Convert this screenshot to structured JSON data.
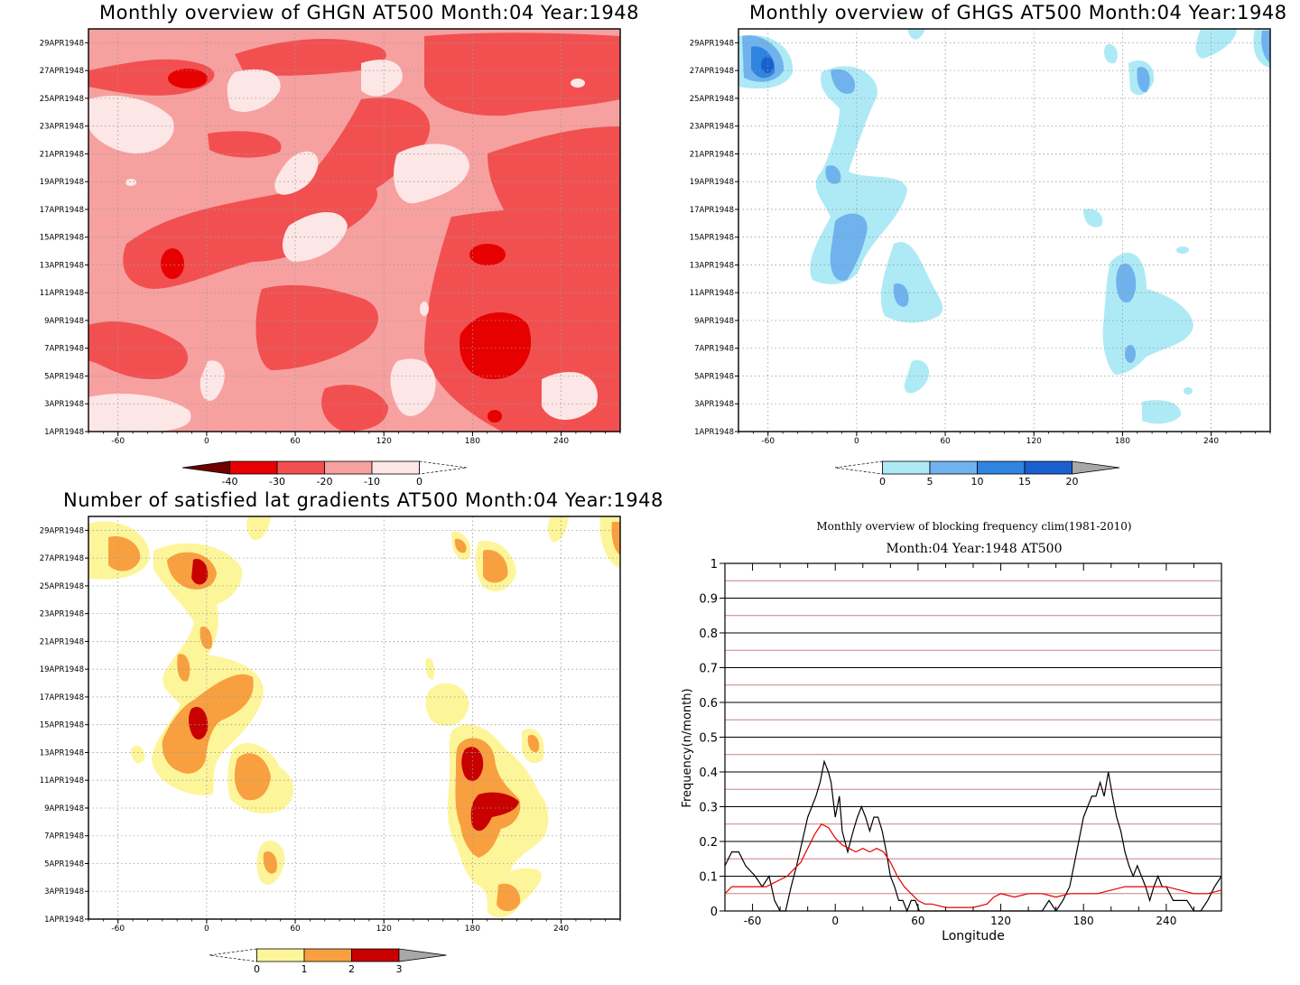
{
  "panels": {
    "ghgn": {
      "title": "Monthly overview of GHGN AT500 Month:04 Year:1948",
      "colorbar": {
        "ticks": [
          "-40",
          "-30",
          "-20",
          "-10",
          "0"
        ],
        "colors": [
          "#6e0000",
          "#e60000",
          "#f25050",
          "#f7a0a0",
          "#fde6e6"
        ]
      },
      "fill": "#f7a0a0"
    },
    "ghgs": {
      "title": "Monthly overview of GHGS AT500 Month:04 Year:1948",
      "colorbar": {
        "ticks": [
          "0",
          "5",
          "10",
          "15",
          "20"
        ],
        "colors": [
          "#aeeaf5",
          "#6fb2ee",
          "#2f84e0",
          "#1a5fcf",
          "#a8a8a8"
        ]
      }
    },
    "grad": {
      "title": "Number of satisfied lat gradients AT500 Month:04 Year:1948",
      "colorbar": {
        "ticks": [
          "0",
          "1",
          "2",
          "3"
        ],
        "colors": [
          "#fdf59a",
          "#f8a040",
          "#c80000",
          "#a8a8a8"
        ]
      }
    },
    "freq": {
      "title": "Monthly overview of blocking frequency clim(1981-2010)",
      "subtitle": "Month:04 Year:1948  AT500"
    }
  },
  "axes": {
    "lon_ticks": [
      "-60",
      "0",
      "60",
      "120",
      "180",
      "240"
    ],
    "date_ticks": [
      "1APR1948",
      "3APR1948",
      "5APR1948",
      "7APR1948",
      "9APR1948",
      "11APR1948",
      "13APR1948",
      "15APR1948",
      "17APR1948",
      "19APR1948",
      "21APR1948",
      "23APR1948",
      "25APR1948",
      "27APR1948",
      "29APR1948"
    ]
  },
  "chart_data": [
    {
      "type": "heatmap",
      "title": "Monthly overview of GHGN AT500 Month:04 Year:1948",
      "xlabel": "",
      "ylabel": "",
      "xlim": [
        -80,
        280
      ],
      "x_ticks": [
        -60,
        0,
        60,
        120,
        180,
        240
      ],
      "y_ticks": [
        "1APR1948",
        "3APR1948",
        "5APR1948",
        "7APR1948",
        "9APR1948",
        "11APR1948",
        "13APR1948",
        "15APR1948",
        "17APR1948",
        "19APR1948",
        "21APR1948",
        "23APR1948",
        "25APR1948",
        "27APR1948",
        "29APR1948"
      ],
      "colorbar_levels": [
        -40,
        -30,
        -20,
        -10,
        0
      ],
      "colormap": "reds",
      "blobs": [
        {
          "x": [
            -80,
            280
          ],
          "y": [
            1,
            30
          ],
          "level": "-20 to -10"
        },
        {
          "x": [
            -38,
            -12
          ],
          "y": [
            27,
            28.6
          ],
          "level": "-30 to -20"
        },
        {
          "x": [
            -40,
            -20
          ],
          "y": [
            12.2,
            14.6
          ],
          "level": "-30 to -20"
        },
        {
          "x": [
            170,
            215
          ],
          "y": [
            12.4,
            15
          ],
          "level": "-30 to -20"
        },
        {
          "x": [
            165,
            220
          ],
          "y": [
            4.4,
            10.4
          ],
          "level": "-30 to -20"
        },
        {
          "x": [
            -75,
            -40
          ],
          "y": [
            21.8,
            26
          ],
          "level": "-10 to 0"
        },
        {
          "x": [
            5,
            95
          ],
          "y": [
            23.6,
            29
          ],
          "level": "-10 to 0"
        }
      ]
    },
    {
      "type": "heatmap",
      "title": "Monthly overview of GHGS AT500 Month:04 Year:1948",
      "xlabel": "",
      "ylabel": "",
      "xlim": [
        -80,
        280
      ],
      "x_ticks": [
        -60,
        0,
        60,
        120,
        180,
        240
      ],
      "y_ticks": [
        "1APR1948",
        "3APR1948",
        "5APR1948",
        "7APR1948",
        "9APR1948",
        "11APR1948",
        "13APR1948",
        "15APR1948",
        "17APR1948",
        "19APR1948",
        "21APR1948",
        "23APR1948",
        "25APR1948",
        "27APR1948",
        "29APR1948"
      ],
      "colorbar_levels": [
        0,
        5,
        10,
        15,
        20
      ],
      "colormap": "blues",
      "blobs": [
        {
          "x": [
            -80,
            -42
          ],
          "y": [
            25.8,
            30
          ],
          "level": "10 to 20"
        },
        {
          "x": [
            -28,
            10
          ],
          "y": [
            12.2,
            27.5
          ],
          "level": "0 to 10"
        },
        {
          "x": [
            20,
            60
          ],
          "y": [
            8.6,
            16.6
          ],
          "level": "0 to 10"
        },
        {
          "x": [
            168,
            225
          ],
          "y": [
            4.6,
            13.6
          ],
          "level": "5 to 15"
        },
        {
          "x": [
            180,
            210
          ],
          "y": [
            1.4,
            3.6
          ],
          "level": "0 to 5"
        },
        {
          "x": [
            180,
            205
          ],
          "y": [
            25.6,
            28.6
          ],
          "level": "0 to 10"
        }
      ]
    },
    {
      "type": "heatmap",
      "title": "Number of satisfied lat gradients AT500 Month:04 Year:1948",
      "xlabel": "",
      "ylabel": "",
      "xlim": [
        -80,
        280
      ],
      "x_ticks": [
        -60,
        0,
        60,
        120,
        180,
        240
      ],
      "y_ticks": [
        "1APR1948",
        "3APR1948",
        "5APR1948",
        "7APR1948",
        "9APR1948",
        "11APR1948",
        "13APR1948",
        "15APR1948",
        "17APR1948",
        "19APR1948",
        "21APR1948",
        "23APR1948",
        "25APR1948",
        "27APR1948",
        "29APR1948"
      ],
      "colorbar_levels": [
        0,
        1,
        2,
        3
      ],
      "colormap": "yellow-orange-red",
      "blobs": [
        {
          "x": [
            -80,
            -42
          ],
          "y": [
            27,
            30
          ],
          "level": "0 to 2"
        },
        {
          "x": [
            -30,
            20
          ],
          "y": [
            25.4,
            28.8
          ],
          "level": "0 to 3"
        },
        {
          "x": [
            -30,
            30
          ],
          "y": [
            12,
            19
          ],
          "level": "0 to 3"
        },
        {
          "x": [
            15,
            60
          ],
          "y": [
            9,
            13.2
          ],
          "level": "0 to 2"
        },
        {
          "x": [
            165,
            230
          ],
          "y": [
            5.8,
            13.8
          ],
          "level": "0 to 3"
        },
        {
          "x": [
            190,
            230
          ],
          "y": [
            0.8,
            3.6
          ],
          "level": "0 to 2"
        },
        {
          "x": [
            180,
            205
          ],
          "y": [
            25.6,
            28.6
          ],
          "level": "0 to 2"
        }
      ]
    },
    {
      "type": "line",
      "title": "Monthly overview of blocking frequency clim(1981-2010)",
      "subtitle": "Month:04 Year:1948  AT500",
      "xlabel": "Longitude",
      "ylabel": "Frequency(n/month)",
      "xlim": [
        -80,
        280
      ],
      "ylim": [
        0,
        1
      ],
      "x_ticks": [
        -60,
        0,
        60,
        120,
        180,
        240
      ],
      "y_ticks": [
        0,
        0.1,
        0.2,
        0.3,
        0.4,
        0.5,
        0.6,
        0.7,
        0.8,
        0.9,
        1
      ],
      "grid": true,
      "series": [
        {
          "color": "#000000",
          "x": [
            -80,
            -75,
            -70,
            -65,
            -58,
            -53,
            -48,
            -44,
            -40,
            -36,
            -32,
            -28,
            -24,
            -20,
            -17,
            -14,
            -11,
            -8,
            -5,
            -3,
            0,
            3,
            5,
            7,
            9,
            11,
            13,
            16,
            19,
            22,
            25,
            28,
            31,
            34,
            37,
            40,
            43,
            46,
            49,
            52,
            55,
            58,
            61,
            65,
            70,
            80,
            100,
            120,
            140,
            150,
            155,
            160,
            165,
            170,
            175,
            180,
            183,
            186,
            189,
            192,
            195,
            198,
            201,
            204,
            207,
            210,
            213,
            216,
            219,
            222,
            225,
            228,
            231,
            234,
            237,
            240,
            245,
            250,
            255,
            260,
            265,
            270,
            275,
            280
          ],
          "y": [
            0.13,
            0.17,
            0.17,
            0.13,
            0.1,
            0.07,
            0.1,
            0.03,
            0.0,
            0.0,
            0.07,
            0.13,
            0.2,
            0.27,
            0.3,
            0.33,
            0.37,
            0.43,
            0.4,
            0.37,
            0.27,
            0.33,
            0.23,
            0.2,
            0.17,
            0.2,
            0.23,
            0.27,
            0.3,
            0.27,
            0.23,
            0.27,
            0.27,
            0.23,
            0.17,
            0.1,
            0.07,
            0.03,
            0.03,
            0.0,
            0.03,
            0.03,
            0.0,
            0.0,
            0.0,
            0.0,
            0.0,
            0.0,
            0.0,
            0.0,
            0.03,
            0.0,
            0.03,
            0.07,
            0.17,
            0.27,
            0.3,
            0.33,
            0.33,
            0.37,
            0.33,
            0.4,
            0.33,
            0.27,
            0.23,
            0.17,
            0.13,
            0.1,
            0.13,
            0.1,
            0.07,
            0.03,
            0.07,
            0.1,
            0.07,
            0.07,
            0.03,
            0.03,
            0.03,
            0.0,
            0.0,
            0.03,
            0.07,
            0.1
          ]
        },
        {
          "color": "#e60000",
          "x": [
            -80,
            -75,
            -70,
            -65,
            -60,
            -55,
            -50,
            -45,
            -40,
            -35,
            -30,
            -25,
            -20,
            -15,
            -10,
            -5,
            0,
            5,
            10,
            15,
            20,
            25,
            30,
            35,
            40,
            45,
            50,
            55,
            60,
            65,
            70,
            80,
            90,
            100,
            110,
            115,
            120,
            130,
            140,
            150,
            160,
            170,
            180,
            190,
            200,
            210,
            220,
            230,
            240,
            250,
            260,
            270,
            280
          ],
          "y": [
            0.05,
            0.07,
            0.07,
            0.07,
            0.07,
            0.07,
            0.07,
            0.08,
            0.09,
            0.1,
            0.12,
            0.14,
            0.18,
            0.22,
            0.25,
            0.24,
            0.21,
            0.19,
            0.18,
            0.17,
            0.18,
            0.17,
            0.18,
            0.17,
            0.14,
            0.1,
            0.07,
            0.05,
            0.03,
            0.02,
            0.02,
            0.01,
            0.01,
            0.01,
            0.02,
            0.04,
            0.05,
            0.04,
            0.05,
            0.05,
            0.04,
            0.05,
            0.05,
            0.05,
            0.06,
            0.07,
            0.07,
            0.07,
            0.07,
            0.06,
            0.05,
            0.05,
            0.06
          ]
        }
      ]
    }
  ]
}
